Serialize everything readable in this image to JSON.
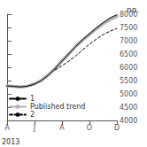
{
  "chart_data": {
    "type": "line",
    "title": "no.",
    "xlabel": "2013",
    "xlim": [
      0,
      8
    ],
    "xticks": [
      {
        "value": 0,
        "label": "A"
      },
      {
        "value": 2,
        "label": "J"
      },
      {
        "value": 4,
        "label": "A"
      },
      {
        "value": 6,
        "label": "O"
      },
      {
        "value": 8,
        "label": "D"
      }
    ],
    "ylim": [
      4000,
      8000
    ],
    "yticks": [
      4000,
      4500,
      5000,
      5500,
      6000,
      6500,
      7000,
      7500,
      8000
    ],
    "grid": false,
    "legend": "lower left",
    "series": [
      {
        "name": "1",
        "color": "#000000",
        "line_style": "solid",
        "x": [
          0,
          0.5,
          1,
          1.5,
          2,
          2.5,
          3,
          3.5,
          4,
          4.5,
          5,
          5.5,
          6,
          6.5,
          7,
          7.5,
          8
        ],
        "values": [
          5300,
          5280,
          5260,
          5290,
          5370,
          5500,
          5700,
          5950,
          6230,
          6510,
          6790,
          7040,
          7260,
          7480,
          7680,
          7860,
          7980
        ]
      },
      {
        "name": "Published trend",
        "color": "#b0b0b0",
        "line_style": "thick",
        "x": [
          0,
          0.5,
          1,
          1.5,
          2,
          2.5,
          3,
          3.5,
          4,
          4.5,
          5,
          5.5,
          6,
          6.5,
          7,
          7.5,
          8
        ],
        "values": [
          5300,
          5280,
          5260,
          5295,
          5375,
          5510,
          5710,
          5960,
          6240,
          6510,
          6780,
          7020,
          7240,
          7450,
          7640,
          7800,
          7920
        ]
      },
      {
        "name": "2",
        "color": "#000000",
        "line_style": "dashed",
        "x": [
          3.5,
          4,
          4.5,
          5,
          5.5,
          6,
          6.5,
          7,
          7.5,
          8
        ],
        "values": [
          5900,
          6060,
          6230,
          6430,
          6650,
          6870,
          7060,
          7230,
          7360,
          7460
        ]
      }
    ]
  }
}
